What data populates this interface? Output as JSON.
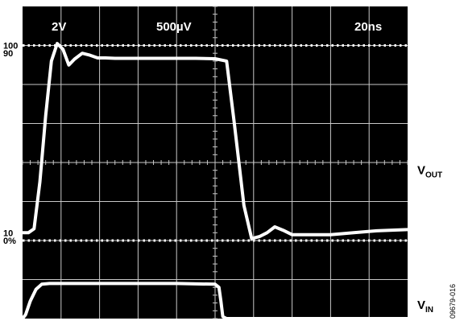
{
  "chart_data": {
    "type": "line",
    "title": "",
    "settings": {
      "ch1": "2V",
      "ch2": "500µV",
      "time": "20ns"
    },
    "divisions": {
      "x": 10,
      "y": 8
    },
    "level_labels": [
      {
        "label": "100",
        "div": 7.0,
        "dotted": true
      },
      {
        "label": "90",
        "div": 6.8,
        "dotted": false
      },
      {
        "label": "10",
        "div": 2.2,
        "dotted": false
      },
      {
        "label": "0%",
        "div": 2.0,
        "dotted": true
      }
    ],
    "series": [
      {
        "name": "VOUT",
        "label_main": "V",
        "label_sub": "OUT",
        "label_div": 3.8,
        "units": "divisions",
        "x": [
          0.0,
          0.15,
          0.3,
          0.45,
          0.6,
          0.75,
          0.9,
          1.05,
          1.2,
          1.35,
          1.55,
          1.75,
          1.95,
          2.15,
          2.4,
          2.6,
          2.9,
          3.3,
          3.8,
          4.5,
          5.0,
          5.3,
          5.5,
          5.75,
          5.95,
          6.15,
          6.35,
          6.55,
          6.8,
          7.0,
          7.3,
          7.6,
          8.0,
          8.6,
          9.2,
          10.0
        ],
        "y": [
          2.2,
          2.2,
          2.3,
          3.5,
          5.2,
          6.6,
          7.05,
          6.9,
          6.5,
          6.65,
          6.8,
          6.75,
          6.68,
          6.68,
          6.67,
          6.67,
          6.67,
          6.67,
          6.67,
          6.67,
          6.66,
          6.6,
          5.0,
          2.9,
          2.05,
          2.1,
          2.2,
          2.35,
          2.25,
          2.15,
          2.15,
          2.15,
          2.15,
          2.2,
          2.25,
          2.28
        ]
      },
      {
        "name": "VIN",
        "label_main": "V",
        "label_sub": "IN",
        "label_div": 0.35,
        "units": "divisions",
        "x": [
          0.0,
          0.08,
          0.2,
          0.35,
          0.5,
          0.7,
          1.0,
          2.0,
          3.0,
          4.0,
          5.0,
          5.1,
          5.15,
          5.2,
          5.3,
          6.0,
          10.0
        ],
        "y": [
          0.0,
          0.1,
          0.45,
          0.75,
          0.88,
          0.9,
          0.9,
          0.9,
          0.9,
          0.9,
          0.88,
          0.8,
          0.45,
          0.05,
          0.0,
          0.0,
          0.0
        ]
      }
    ]
  },
  "figure_id": "09679-016"
}
